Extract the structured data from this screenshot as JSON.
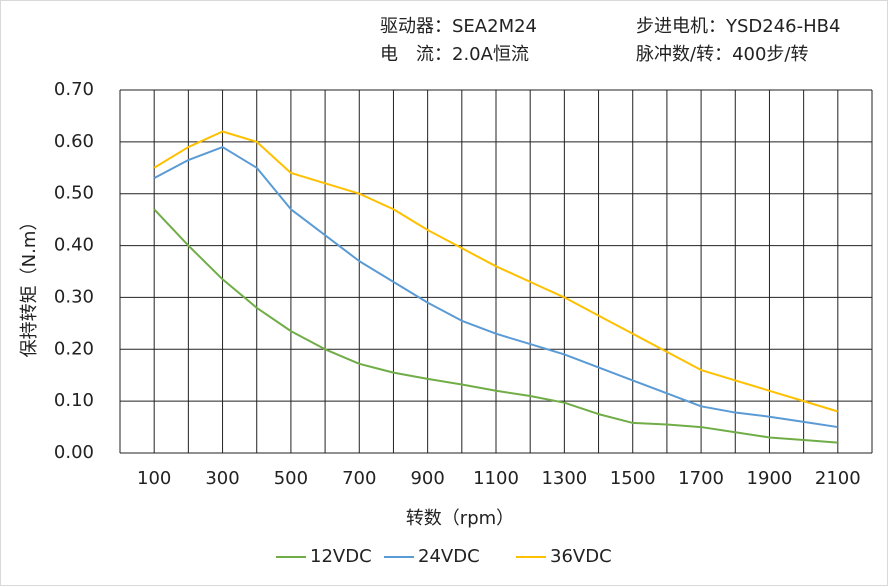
{
  "chart_data": {
    "type": "line",
    "header": [
      "驱动器：SEA2M24",
      "电　流：2.0A恒流",
      "步进电机：YSD246-HB4",
      "脉冲数/转：400步/转"
    ],
    "y_label": "保持转矩（N.m）",
    "x_label": "转数（rpm）",
    "x": [
      100,
      200,
      300,
      400,
      500,
      600,
      700,
      800,
      900,
      1000,
      1100,
      1200,
      1300,
      1400,
      1500,
      1600,
      1700,
      1800,
      1900,
      2000,
      2100
    ],
    "xlim": [
      0,
      2200
    ],
    "xticks": [
      100,
      300,
      500,
      700,
      900,
      1100,
      1300,
      1500,
      1700,
      1900,
      2100
    ],
    "xgrid": [
      0,
      100,
      200,
      300,
      400,
      500,
      600,
      700,
      800,
      900,
      1000,
      1100,
      1200,
      1300,
      1400,
      1500,
      1600,
      1700,
      1800,
      1900,
      2000,
      2100,
      2200
    ],
    "ylim": [
      0,
      0.7
    ],
    "yticks": [
      {
        "value": 0,
        "label": "0.00"
      },
      {
        "value": 0.1,
        "label": "0.10"
      },
      {
        "value": 0.2,
        "label": "0.20"
      },
      {
        "value": 0.3,
        "label": "0.30"
      },
      {
        "value": 0.4,
        "label": "0.40"
      },
      {
        "value": 0.5,
        "label": "0.50"
      },
      {
        "value": 0.6,
        "label": "0.60"
      },
      {
        "value": 0.7,
        "label": "0.70"
      }
    ],
    "grid": true,
    "series": [
      {
        "name": "12VDC",
        "color": "#70ad47",
        "values": [
          0.47,
          0.4,
          0.335,
          0.28,
          0.235,
          0.2,
          0.172,
          0.155,
          0.143,
          0.132,
          0.12,
          0.11,
          0.097,
          0.075,
          0.058,
          0.055,
          0.05,
          0.04,
          0.03,
          0.025,
          0.02
        ]
      },
      {
        "name": "24VDC",
        "color": "#5b9bd5",
        "values": [
          0.53,
          0.565,
          0.59,
          0.55,
          0.47,
          0.42,
          0.37,
          0.33,
          0.29,
          0.255,
          0.23,
          0.21,
          0.19,
          0.165,
          0.14,
          0.115,
          0.09,
          0.078,
          0.07,
          0.06,
          0.05
        ]
      },
      {
        "name": "36VDC",
        "color": "#ffc000",
        "values": [
          0.55,
          0.59,
          0.62,
          0.6,
          0.54,
          0.52,
          0.5,
          0.47,
          0.43,
          0.395,
          0.36,
          0.33,
          0.3,
          0.265,
          0.23,
          0.195,
          0.16,
          0.14,
          0.12,
          0.1,
          0.08
        ]
      }
    ]
  }
}
